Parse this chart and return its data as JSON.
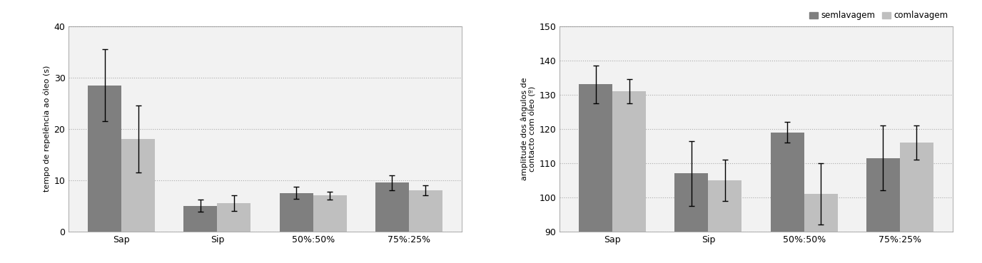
{
  "categories": [
    "Sap",
    "Sip",
    "50%:50%",
    "75%:25%"
  ],
  "left": {
    "ylabel": "tempo de repelência ao óleo (s)",
    "ylim": [
      0,
      40
    ],
    "yticks": [
      0,
      10,
      20,
      30,
      40
    ],
    "series1_vals": [
      28.5,
      5.0,
      7.5,
      9.5
    ],
    "series1_err": [
      7.0,
      1.2,
      1.2,
      1.5
    ],
    "series2_vals": [
      18.0,
      5.5,
      7.0,
      8.0
    ],
    "series2_err": [
      6.5,
      1.5,
      0.8,
      1.0
    ]
  },
  "right": {
    "ylabel": "amplitude dos ângulos de\ncontacto com óleo (º)",
    "ylim": [
      90,
      150
    ],
    "yticks": [
      90,
      100,
      110,
      120,
      130,
      140,
      150
    ],
    "series1_vals": [
      133.0,
      107.0,
      119.0,
      111.5
    ],
    "series1_err": [
      5.5,
      9.5,
      3.0,
      9.5
    ],
    "series2_vals": [
      131.0,
      105.0,
      101.0,
      116.0
    ],
    "series2_err": [
      3.5,
      6.0,
      9.0,
      5.0
    ]
  },
  "legend_labels": [
    "semlavagem",
    "comlavagem"
  ],
  "color_series1": "#7f7f7f",
  "color_series2": "#bfbfbf",
  "bar_width": 0.35,
  "grid_color": "#aaaaaa",
  "bg_color": "#f2f2f2"
}
